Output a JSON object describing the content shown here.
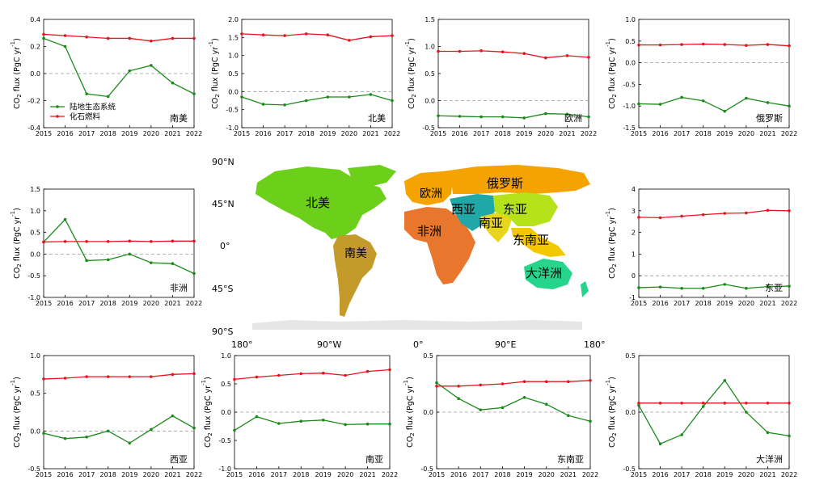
{
  "colors": {
    "land": "#1a8a1a",
    "fossil": "#e8141c",
    "zero_line": "#999999",
    "axis": "#000000",
    "map_north_america": "#6ccf1a",
    "map_south_america": "#c49a2a",
    "map_europe": "#f4a300",
    "map_russia": "#f4a300",
    "map_africa": "#e8762c",
    "map_west_asia": "#20a8a8",
    "map_south_asia": "#e8d61a",
    "map_east_asia": "#b5e21a",
    "map_southeast_asia": "#f4c800",
    "map_oceania": "#26d58b",
    "map_other": "#cccccc"
  },
  "ylabel": "CO",
  "ylabel_sub": "2",
  "ylabel_rest": " flux (PgC yr",
  "ylabel_sup": "-1",
  "ylabel_end": ")",
  "legend": {
    "land": "陆地生态系统",
    "fossil": "化石燃料"
  },
  "map": {
    "lat_labels": [
      "90°N",
      "45°N",
      "0°",
      "45°S",
      "90°S"
    ],
    "lon_labels": [
      "180°",
      "90°W",
      "0°",
      "90°E",
      "180°"
    ],
    "region_labels": {
      "north_america": "北美",
      "south_america": "南美",
      "europe": "欧洲",
      "russia": "俄罗斯",
      "africa": "非洲",
      "west_asia": "西亚",
      "south_asia": "南亚",
      "east_asia": "东亚",
      "southeast_asia": "东南亚",
      "oceania": "大洋洲"
    }
  },
  "chart_data": [
    {
      "type": "line",
      "region": "南美",
      "x": [
        2015,
        2016,
        2017,
        2018,
        2019,
        2020,
        2021,
        2022
      ],
      "ylim": [
        -0.4,
        0.4
      ],
      "yticks": [
        -0.4,
        -0.2,
        0.0,
        0.2,
        0.4
      ],
      "series": [
        {
          "name": "陆地生态系统",
          "values": [
            0.26,
            0.2,
            -0.15,
            -0.17,
            0.02,
            0.06,
            -0.07,
            -0.15
          ]
        },
        {
          "name": "化石燃料",
          "values": [
            0.29,
            0.28,
            0.27,
            0.26,
            0.26,
            0.24,
            0.26,
            0.26
          ]
        }
      ],
      "legend": true
    },
    {
      "type": "line",
      "region": "北美",
      "x": [
        2015,
        2016,
        2017,
        2018,
        2019,
        2020,
        2021,
        2022
      ],
      "ylim": [
        -1.0,
        2.0
      ],
      "yticks": [
        -1.0,
        -0.5,
        0.0,
        0.5,
        1.0,
        1.5,
        2.0
      ],
      "series": [
        {
          "name": "陆地生态系统",
          "values": [
            -0.15,
            -0.35,
            -0.37,
            -0.25,
            -0.15,
            -0.15,
            -0.08,
            -0.25
          ]
        },
        {
          "name": "化石燃料",
          "values": [
            1.6,
            1.57,
            1.55,
            1.6,
            1.57,
            1.42,
            1.52,
            1.55
          ]
        }
      ]
    },
    {
      "type": "line",
      "region": "欧洲",
      "x": [
        2015,
        2016,
        2017,
        2018,
        2019,
        2020,
        2021,
        2022
      ],
      "ylim": [
        -0.5,
        1.5
      ],
      "yticks": [
        -0.5,
        0.0,
        0.5,
        1.0,
        1.5
      ],
      "series": [
        {
          "name": "陆地生态系统",
          "values": [
            -0.28,
            -0.29,
            -0.3,
            -0.3,
            -0.32,
            -0.24,
            -0.25,
            -0.3
          ]
        },
        {
          "name": "化石燃料",
          "values": [
            0.91,
            0.91,
            0.92,
            0.9,
            0.87,
            0.79,
            0.83,
            0.8
          ]
        }
      ]
    },
    {
      "type": "line",
      "region": "俄罗斯",
      "x": [
        2015,
        2016,
        2017,
        2018,
        2019,
        2020,
        2021,
        2022
      ],
      "ylim": [
        -1.5,
        1.0
      ],
      "yticks": [
        -1.5,
        -1.0,
        -0.5,
        0.0,
        0.5,
        1.0
      ],
      "series": [
        {
          "name": "陆地生态系统",
          "values": [
            -0.95,
            -0.96,
            -0.8,
            -0.88,
            -1.12,
            -0.82,
            -0.92,
            -1.0
          ]
        },
        {
          "name": "化石燃料",
          "values": [
            0.41,
            0.41,
            0.42,
            0.43,
            0.42,
            0.4,
            0.42,
            0.39
          ]
        }
      ]
    },
    {
      "type": "line",
      "region": "非洲",
      "x": [
        2015,
        2016,
        2017,
        2018,
        2019,
        2020,
        2021,
        2022
      ],
      "ylim": [
        -1.0,
        1.5
      ],
      "yticks": [
        -1.0,
        -0.5,
        0.0,
        0.5,
        1.0,
        1.5
      ],
      "series": [
        {
          "name": "陆地生态系统",
          "values": [
            0.28,
            0.8,
            -0.15,
            -0.13,
            0.0,
            -0.2,
            -0.22,
            -0.45
          ]
        },
        {
          "name": "化石燃料",
          "values": [
            0.28,
            0.29,
            0.29,
            0.29,
            0.3,
            0.29,
            0.3,
            0.3
          ]
        }
      ]
    },
    {
      "type": "line",
      "region": "东亚",
      "x": [
        2015,
        2016,
        2017,
        2018,
        2019,
        2020,
        2021,
        2022
      ],
      "ylim": [
        -1.0,
        4.0
      ],
      "yticks": [
        -1,
        0,
        1,
        2,
        3,
        4
      ],
      "series": [
        {
          "name": "陆地生态系统",
          "values": [
            -0.55,
            -0.52,
            -0.58,
            -0.58,
            -0.4,
            -0.58,
            -0.5,
            -0.48
          ]
        },
        {
          "name": "化石燃料",
          "values": [
            2.7,
            2.68,
            2.75,
            2.82,
            2.88,
            2.9,
            3.02,
            3.0
          ]
        }
      ]
    },
    {
      "type": "line",
      "region": "西亚",
      "x": [
        2015,
        2016,
        2017,
        2018,
        2019,
        2020,
        2021,
        2022
      ],
      "ylim": [
        -0.5,
        1.0
      ],
      "yticks": [
        -0.5,
        0.0,
        0.5,
        1.0
      ],
      "series": [
        {
          "name": "陆地生态系统",
          "values": [
            -0.03,
            -0.1,
            -0.08,
            0.0,
            -0.16,
            0.02,
            0.2,
            0.04
          ]
        },
        {
          "name": "化石燃料",
          "values": [
            0.69,
            0.7,
            0.72,
            0.72,
            0.72,
            0.72,
            0.75,
            0.76
          ]
        }
      ]
    },
    {
      "type": "line",
      "region": "南亚",
      "x": [
        2015,
        2016,
        2017,
        2018,
        2019,
        2020,
        2021,
        2022
      ],
      "ylim": [
        -1.0,
        1.0
      ],
      "yticks": [
        -1.0,
        -0.5,
        0.0,
        0.5,
        1.0
      ],
      "series": [
        {
          "name": "陆地生态系统",
          "values": [
            -0.32,
            -0.08,
            -0.2,
            -0.16,
            -0.14,
            -0.22,
            -0.21,
            -0.21
          ]
        },
        {
          "name": "化石燃料",
          "values": [
            0.58,
            0.62,
            0.65,
            0.68,
            0.69,
            0.65,
            0.72,
            0.75
          ]
        }
      ]
    },
    {
      "type": "line",
      "region": "东南亚",
      "x": [
        2015,
        2016,
        2017,
        2018,
        2019,
        2020,
        2021,
        2022
      ],
      "ylim": [
        -0.5,
        0.5
      ],
      "yticks": [
        -0.5,
        0.0,
        0.5
      ],
      "series": [
        {
          "name": "陆地生态系统",
          "values": [
            0.26,
            0.12,
            0.02,
            0.04,
            0.13,
            0.07,
            -0.03,
            -0.08
          ]
        },
        {
          "name": "化石燃料",
          "values": [
            0.23,
            0.23,
            0.24,
            0.25,
            0.27,
            0.27,
            0.27,
            0.28
          ]
        }
      ]
    },
    {
      "type": "line",
      "region": "大洋洲",
      "x": [
        2015,
        2016,
        2017,
        2018,
        2019,
        2020,
        2021,
        2022
      ],
      "ylim": [
        -0.5,
        0.5
      ],
      "yticks": [
        -0.5,
        0.0,
        0.5
      ],
      "series": [
        {
          "name": "陆地生态系统",
          "values": [
            0.06,
            -0.28,
            -0.2,
            0.05,
            0.28,
            0.0,
            -0.18,
            -0.21
          ]
        },
        {
          "name": "化石燃料",
          "values": [
            0.08,
            0.08,
            0.08,
            0.08,
            0.08,
            0.08,
            0.08,
            0.08
          ]
        }
      ]
    }
  ]
}
